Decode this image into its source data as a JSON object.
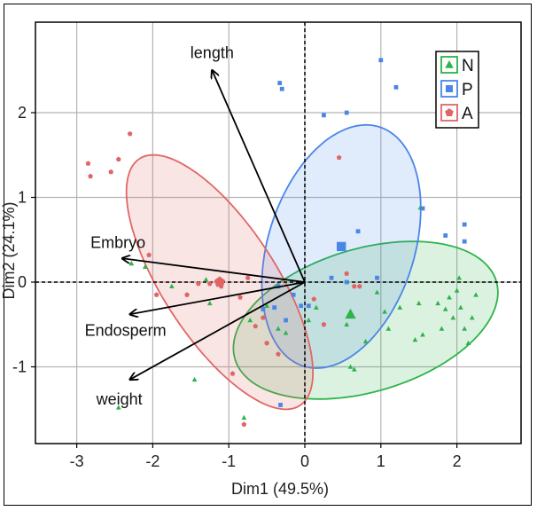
{
  "chart_data": {
    "type": "scatter",
    "subtype": "pca-biplot",
    "title": "",
    "xlabel": "Dim1 (49.5%)",
    "ylabel": "Dim2 (24.1%)",
    "xlim": [
      -3.3,
      2.6
    ],
    "ylim": [
      -1.85,
      2.7
    ],
    "xticks": [
      "-3",
      "-2",
      "-1",
      "0",
      "1",
      "2"
    ],
    "yticks": [
      "-1",
      "0",
      "1",
      "2"
    ],
    "grid": true,
    "legend_position": "top-right",
    "series": [
      {
        "name": "N",
        "color": "#2db34a",
        "marker": "triangle",
        "points": [
          [
            -2.45,
            -1.48
          ],
          [
            -2.28,
            0.22
          ],
          [
            -2.1,
            0.18
          ],
          [
            -1.45,
            -1.15
          ],
          [
            -1.25,
            -0.25
          ],
          [
            -0.8,
            -1.6
          ],
          [
            -0.72,
            -0.45
          ],
          [
            -0.5,
            -0.28
          ],
          [
            -0.35,
            -0.55
          ],
          [
            -0.25,
            -0.6
          ],
          [
            0.05,
            -0.45
          ],
          [
            0.15,
            -0.3
          ],
          [
            0.55,
            -0.5
          ],
          [
            0.6,
            -1.0
          ],
          [
            0.65,
            -1.03
          ],
          [
            0.8,
            -0.7
          ],
          [
            0.95,
            -0.12
          ],
          [
            1.05,
            -0.35
          ],
          [
            1.1,
            -0.55
          ],
          [
            1.25,
            -0.3
          ],
          [
            1.45,
            -0.68
          ],
          [
            1.5,
            -0.25
          ],
          [
            1.55,
            -0.62
          ],
          [
            1.52,
            0.88
          ],
          [
            1.75,
            -0.25
          ],
          [
            1.8,
            -0.55
          ],
          [
            1.85,
            -0.32
          ],
          [
            1.9,
            -0.18
          ],
          [
            1.95,
            -0.42
          ],
          [
            2.0,
            -0.1
          ],
          [
            2.05,
            -0.3
          ],
          [
            2.1,
            -0.55
          ],
          [
            2.15,
            -0.72
          ],
          [
            2.2,
            -0.42
          ],
          [
            2.25,
            -0.15
          ],
          [
            2.03,
            0.05
          ],
          [
            -1.75,
            -0.05
          ],
          [
            -1.3,
            0.03
          ]
        ],
        "centroid": [
          0.6,
          -0.38
        ]
      },
      {
        "name": "P",
        "color": "#4a86e8",
        "marker": "square",
        "points": [
          [
            -0.33,
            2.35
          ],
          [
            -0.3,
            2.28
          ],
          [
            1.0,
            2.62
          ],
          [
            1.2,
            2.3
          ],
          [
            0.55,
            2.0
          ],
          [
            0.25,
            1.97
          ],
          [
            1.55,
            0.87
          ],
          [
            0.7,
            0.6
          ],
          [
            1.85,
            0.55
          ],
          [
            2.1,
            0.68
          ],
          [
            2.1,
            0.48
          ],
          [
            0.35,
            0.05
          ],
          [
            0.55,
            0.0
          ],
          [
            0.95,
            0.05
          ],
          [
            -0.35,
            -0.05
          ],
          [
            -0.15,
            -0.15
          ],
          [
            -0.05,
            -0.28
          ],
          [
            -0.25,
            -0.45
          ],
          [
            -0.32,
            -1.45
          ],
          [
            0.05,
            -0.28
          ],
          [
            -0.4,
            -0.3
          ],
          [
            -0.55,
            -0.32
          ]
        ],
        "centroid": [
          0.48,
          0.42
        ]
      },
      {
        "name": "A",
        "color": "#e06666",
        "marker": "pentagon",
        "points": [
          [
            -2.85,
            1.4
          ],
          [
            -2.82,
            1.25
          ],
          [
            -2.55,
            1.3
          ],
          [
            -2.45,
            1.45
          ],
          [
            -2.3,
            1.75
          ],
          [
            -2.05,
            0.32
          ],
          [
            -1.95,
            -0.15
          ],
          [
            -1.55,
            -0.15
          ],
          [
            -1.4,
            -0.02
          ],
          [
            -1.25,
            -0.02
          ],
          [
            -1.1,
            -0.05
          ],
          [
            -0.85,
            -0.18
          ],
          [
            -0.75,
            0.05
          ],
          [
            -0.55,
            -0.42
          ],
          [
            -0.65,
            -0.52
          ],
          [
            -0.5,
            -0.72
          ],
          [
            -0.35,
            -0.85
          ],
          [
            -0.8,
            -1.68
          ],
          [
            -0.95,
            -1.08
          ],
          [
            0.12,
            -0.2
          ],
          [
            0.25,
            -0.5
          ],
          [
            0.45,
            1.47
          ],
          [
            0.55,
            0.1
          ],
          [
            0.72,
            -0.05
          ],
          [
            0.65,
            -0.05
          ]
        ],
        "centroid": [
          -1.12,
          0.0
        ]
      }
    ],
    "ellipses": [
      {
        "group": "N",
        "center": [
          0.8,
          -0.45
        ],
        "semi_axes": [
          1.78,
          0.85
        ],
        "angle_deg": 14
      },
      {
        "group": "P",
        "center": [
          0.48,
          0.42
        ],
        "semi_axes": [
          1.5,
          0.95
        ],
        "angle_deg": 68
      },
      {
        "group": "A",
        "center": [
          -1.12,
          0.0
        ],
        "semi_axes": [
          1.8,
          0.72
        ],
        "angle_deg": -53
      }
    ],
    "loadings": [
      {
        "label": "length",
        "x": -1.22,
        "y": 2.5
      },
      {
        "label": "Embryo",
        "x": -2.4,
        "y": 0.28
      },
      {
        "label": "Endosperm",
        "x": -2.3,
        "y": -0.38
      },
      {
        "label": "weight",
        "x": -2.3,
        "y": -1.15
      }
    ]
  }
}
